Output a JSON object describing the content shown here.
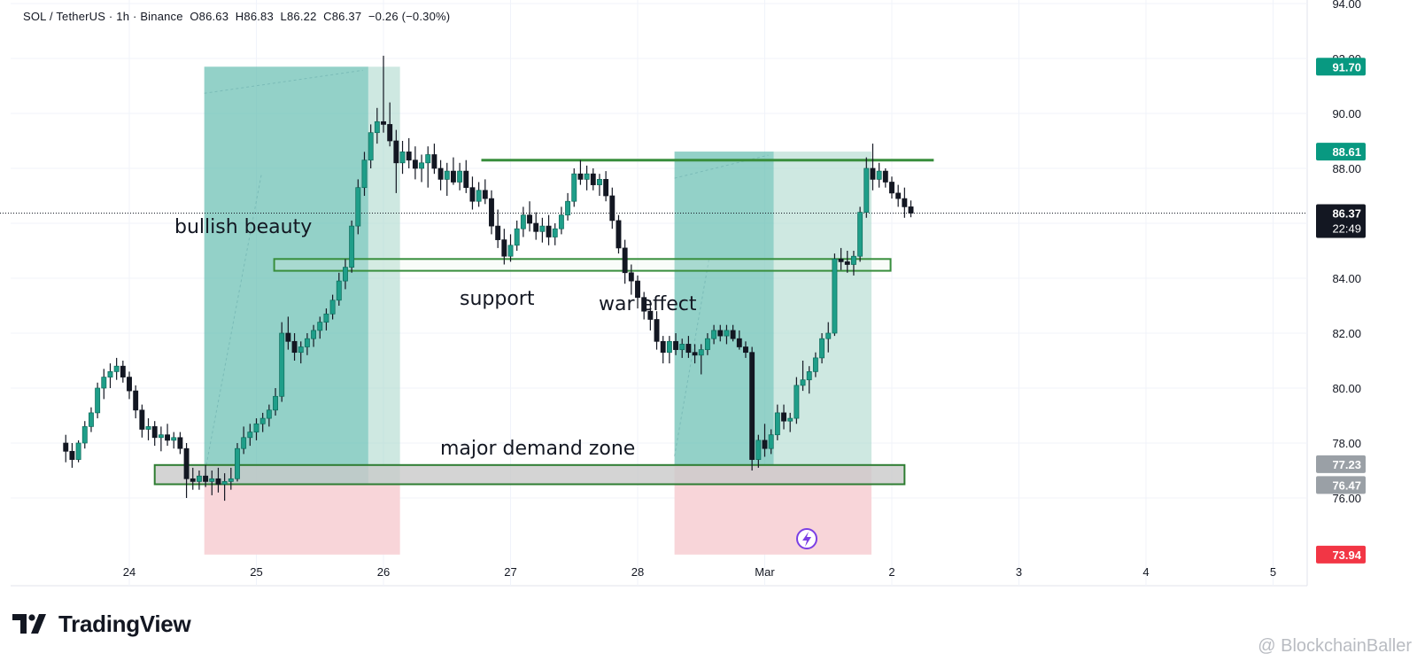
{
  "header": {
    "symbol": "SOL / TetherUS",
    "interval": "1h",
    "exchange": "Binance",
    "open": "O86.63",
    "high": "H86.83",
    "low": "L86.22",
    "close": "C86.37",
    "change": "−0.26 (−0.30%)"
  },
  "branding": {
    "logo_text": "TradingView",
    "watermark": "@ BlockchainBaller"
  },
  "colors": {
    "up": "#26a69a",
    "down": "#000000",
    "candle_body_up": "#ffffff",
    "long_profit": "#a5d6c9",
    "long_stop": "#f8d3d7",
    "zone_green": "#2e7d32",
    "demand_zone_fill": "#c9c9c9",
    "badge_green": "#089981",
    "badge_red": "#f23645",
    "badge_black": "#131722"
  },
  "chart_data": {
    "type": "candlestick",
    "symbol": "SOL/USDT",
    "timeframe": "1h",
    "ylim": [
      74,
      94
    ],
    "y_ticks": [
      "76.00",
      "78.00",
      "80.00",
      "82.00",
      "84.00",
      "86.00",
      "88.00",
      "90.00",
      "92.00",
      "94.00"
    ],
    "x_ticks": [
      "24",
      "25",
      "26",
      "27",
      "28",
      "Mar",
      "2",
      "3",
      "4",
      "5"
    ],
    "price_labels": [
      {
        "text": "91.70",
        "value": 91.7,
        "style": "green"
      },
      {
        "text": "88.61",
        "value": 88.61,
        "style": "green"
      },
      {
        "text": "86.37",
        "value": 86.37,
        "style": "black",
        "countdown": "22:49"
      },
      {
        "text": "77.23",
        "value": 77.23,
        "style": "gray"
      },
      {
        "text": "76.47",
        "value": 76.47,
        "style": "gray"
      },
      {
        "text": "73.94",
        "value": 73.94,
        "style": "red"
      }
    ],
    "annotations": [
      "bullish beauty",
      "support",
      "war effect",
      "major demand zone"
    ],
    "horizontal_levels": [
      {
        "name": "resistance",
        "value": 88.3,
        "from": 26.77,
        "to": 30.33
      },
      {
        "name": "support",
        "from": 25.14,
        "to": 29.99,
        "low": 84.4,
        "high": 84.7
      },
      {
        "name": "major demand zone",
        "from": 24.2,
        "to": 30.1,
        "low": 76.5,
        "high": 77.2
      }
    ],
    "positions": [
      {
        "type": "long",
        "start": 24.59,
        "mid": 25.88,
        "end": 26.13,
        "entry": 76.5,
        "target": 91.7,
        "stop": 73.94
      },
      {
        "type": "long",
        "start": 28.29,
        "mid": 29.07,
        "end": 29.84,
        "entry": 77.2,
        "target": 88.61,
        "stop": 73.94
      }
    ],
    "last_price": 86.37,
    "candles": [
      [
        23.5,
        78.0,
        78.3,
        77.3,
        77.7
      ],
      [
        23.55,
        77.7,
        78.0,
        77.1,
        77.4
      ],
      [
        23.6,
        77.4,
        78.1,
        77.3,
        78.0
      ],
      [
        23.65,
        78.0,
        78.8,
        77.8,
        78.6
      ],
      [
        23.7,
        78.6,
        79.3,
        78.4,
        79.1
      ],
      [
        23.75,
        79.1,
        80.2,
        78.9,
        80.0
      ],
      [
        23.8,
        80.0,
        80.7,
        79.6,
        80.4
      ],
      [
        23.85,
        80.4,
        80.9,
        80.0,
        80.6
      ],
      [
        23.9,
        80.6,
        81.1,
        80.3,
        80.8
      ],
      [
        23.95,
        80.8,
        81.0,
        80.2,
        80.4
      ],
      [
        24.0,
        80.4,
        80.6,
        79.6,
        79.9
      ],
      [
        24.05,
        79.9,
        80.1,
        78.9,
        79.2
      ],
      [
        24.1,
        79.2,
        79.4,
        78.2,
        78.5
      ],
      [
        24.15,
        78.5,
        78.9,
        78.1,
        78.6
      ],
      [
        24.2,
        78.6,
        78.8,
        77.9,
        78.2
      ],
      [
        24.25,
        78.2,
        78.6,
        77.7,
        78.3
      ],
      [
        24.3,
        78.3,
        78.7,
        77.9,
        78.1
      ],
      [
        24.35,
        78.1,
        78.4,
        77.8,
        78.2
      ],
      [
        24.4,
        78.2,
        78.4,
        77.6,
        77.8
      ],
      [
        24.45,
        77.8,
        78.0,
        76.0,
        76.7
      ],
      [
        24.5,
        76.7,
        77.1,
        76.3,
        76.6
      ],
      [
        24.55,
        76.6,
        77.0,
        76.3,
        76.8
      ],
      [
        24.6,
        76.8,
        77.2,
        76.4,
        76.6
      ],
      [
        24.65,
        76.6,
        77.0,
        76.1,
        76.7
      ],
      [
        24.7,
        76.7,
        77.1,
        76.2,
        76.5
      ],
      [
        24.75,
        76.5,
        76.9,
        75.9,
        76.6
      ],
      [
        24.8,
        76.6,
        77.1,
        76.3,
        76.7
      ],
      [
        24.85,
        76.7,
        78.0,
        76.6,
        77.8
      ],
      [
        24.9,
        77.8,
        78.6,
        77.6,
        78.2
      ],
      [
        24.95,
        78.2,
        78.7,
        77.9,
        78.4
      ],
      [
        25.0,
        78.4,
        78.9,
        78.1,
        78.7
      ],
      [
        25.05,
        78.7,
        79.1,
        78.4,
        78.9
      ],
      [
        25.1,
        78.9,
        79.4,
        78.6,
        79.2
      ],
      [
        25.15,
        79.2,
        80.0,
        79.0,
        79.7
      ],
      [
        25.2,
        79.7,
        82.4,
        79.5,
        82.0
      ],
      [
        25.25,
        82.0,
        82.6,
        81.4,
        81.7
      ],
      [
        25.3,
        81.7,
        82.0,
        81.0,
        81.3
      ],
      [
        25.35,
        81.3,
        81.7,
        80.9,
        81.5
      ],
      [
        25.4,
        81.5,
        82.0,
        81.2,
        81.8
      ],
      [
        25.45,
        81.8,
        82.3,
        81.5,
        82.1
      ],
      [
        25.5,
        82.1,
        82.6,
        81.8,
        82.4
      ],
      [
        25.55,
        82.4,
        82.9,
        82.1,
        82.7
      ],
      [
        25.6,
        82.7,
        83.4,
        82.5,
        83.2
      ],
      [
        25.65,
        83.2,
        84.2,
        83.0,
        83.9
      ],
      [
        25.7,
        83.9,
        84.7,
        83.6,
        84.4
      ],
      [
        25.75,
        84.4,
        86.1,
        84.2,
        85.9
      ],
      [
        25.8,
        85.9,
        87.6,
        85.6,
        87.3
      ],
      [
        25.85,
        87.3,
        88.6,
        87.0,
        88.3
      ],
      [
        25.9,
        88.3,
        89.6,
        88.0,
        89.3
      ],
      [
        25.95,
        89.3,
        90.2,
        88.9,
        89.7
      ],
      [
        26.0,
        89.7,
        92.1,
        89.3,
        89.6
      ],
      [
        26.05,
        89.6,
        90.4,
        88.8,
        89.0
      ],
      [
        26.1,
        89.0,
        89.4,
        87.1,
        88.2
      ],
      [
        26.15,
        88.2,
        89.0,
        87.8,
        88.6
      ],
      [
        26.2,
        88.6,
        89.1,
        88.0,
        88.3
      ],
      [
        26.25,
        88.3,
        88.8,
        87.6,
        88.0
      ],
      [
        26.3,
        88.0,
        88.5,
        87.5,
        88.2
      ],
      [
        26.35,
        88.2,
        88.8,
        87.3,
        88.5
      ],
      [
        26.4,
        88.5,
        88.9,
        87.8,
        88.0
      ],
      [
        26.45,
        88.0,
        88.3,
        87.2,
        87.6
      ],
      [
        26.5,
        87.6,
        88.2,
        87.0,
        87.9
      ],
      [
        26.55,
        87.9,
        88.4,
        87.4,
        87.5
      ],
      [
        26.6,
        87.5,
        88.2,
        87.2,
        87.9
      ],
      [
        26.65,
        87.9,
        88.3,
        87.1,
        87.3
      ],
      [
        26.7,
        87.3,
        87.7,
        86.5,
        86.8
      ],
      [
        26.75,
        86.8,
        87.5,
        86.6,
        87.2
      ],
      [
        26.8,
        87.2,
        87.6,
        86.7,
        86.9
      ],
      [
        26.85,
        86.9,
        87.2,
        85.6,
        85.9
      ],
      [
        26.9,
        85.9,
        86.5,
        85.1,
        85.4
      ],
      [
        26.95,
        85.4,
        85.8,
        84.5,
        84.8
      ],
      [
        27.0,
        84.8,
        85.6,
        84.6,
        85.2
      ],
      [
        27.05,
        85.2,
        86.1,
        85.0,
        85.8
      ],
      [
        27.1,
        85.8,
        86.6,
        85.5,
        86.3
      ],
      [
        27.15,
        86.3,
        86.8,
        85.7,
        86.0
      ],
      [
        27.2,
        86.0,
        86.4,
        85.4,
        85.7
      ],
      [
        27.25,
        85.7,
        86.2,
        85.3,
        85.9
      ],
      [
        27.3,
        85.9,
        86.3,
        85.2,
        85.5
      ],
      [
        27.35,
        85.5,
        86.0,
        85.2,
        85.8
      ],
      [
        27.4,
        85.8,
        86.6,
        85.6,
        86.3
      ],
      [
        27.45,
        86.3,
        87.1,
        86.1,
        86.8
      ],
      [
        27.5,
        86.8,
        88.0,
        86.6,
        87.8
      ],
      [
        27.55,
        87.8,
        88.3,
        87.4,
        87.6
      ],
      [
        27.6,
        87.6,
        88.1,
        87.2,
        87.8
      ],
      [
        27.65,
        87.8,
        88.0,
        87.2,
        87.4
      ],
      [
        27.7,
        87.4,
        87.8,
        87.0,
        87.6
      ],
      [
        27.75,
        87.6,
        87.9,
        86.8,
        87.0
      ],
      [
        27.8,
        87.0,
        87.3,
        85.8,
        86.1
      ],
      [
        27.85,
        86.1,
        86.3,
        84.9,
        85.1
      ],
      [
        27.9,
        85.1,
        85.4,
        83.8,
        84.2
      ],
      [
        27.95,
        84.2,
        84.5,
        83.4,
        83.9
      ],
      [
        28.0,
        83.9,
        84.1,
        82.9,
        83.3
      ],
      [
        28.05,
        83.3,
        83.5,
        82.5,
        82.8
      ],
      [
        28.1,
        82.8,
        83.2,
        82.1,
        82.5
      ],
      [
        28.15,
        82.5,
        82.8,
        81.4,
        81.7
      ],
      [
        28.2,
        81.7,
        81.9,
        80.9,
        81.3
      ],
      [
        28.25,
        81.3,
        81.9,
        80.9,
        81.7
      ],
      [
        28.3,
        81.7,
        82.0,
        81.2,
        81.4
      ],
      [
        28.35,
        81.4,
        81.8,
        81.1,
        81.6
      ],
      [
        28.4,
        81.6,
        81.9,
        81.1,
        81.3
      ],
      [
        28.45,
        81.3,
        81.6,
        80.9,
        81.2
      ],
      [
        28.5,
        81.2,
        81.6,
        80.5,
        81.4
      ],
      [
        28.55,
        81.4,
        82.0,
        81.2,
        81.8
      ],
      [
        28.6,
        81.8,
        82.3,
        81.6,
        82.1
      ],
      [
        28.65,
        82.1,
        82.3,
        81.7,
        81.9
      ],
      [
        28.7,
        81.9,
        82.3,
        81.6,
        82.1
      ],
      [
        28.75,
        82.1,
        82.3,
        81.7,
        81.8
      ],
      [
        28.8,
        81.8,
        82.1,
        81.4,
        81.5
      ],
      [
        28.85,
        81.5,
        81.7,
        81.1,
        81.3
      ],
      [
        28.9,
        81.3,
        81.5,
        77.0,
        77.4
      ],
      [
        28.95,
        77.4,
        78.3,
        77.1,
        78.1
      ],
      [
        29.0,
        78.1,
        78.7,
        77.5,
        77.8
      ],
      [
        29.05,
        77.8,
        78.5,
        77.6,
        78.3
      ],
      [
        29.1,
        78.3,
        79.4,
        78.1,
        79.1
      ],
      [
        29.15,
        79.1,
        79.4,
        78.5,
        78.8
      ],
      [
        29.2,
        78.8,
        79.1,
        78.4,
        78.9
      ],
      [
        29.25,
        78.9,
        80.4,
        78.7,
        80.1
      ],
      [
        29.3,
        80.1,
        81.0,
        79.9,
        80.3
      ],
      [
        29.35,
        80.3,
        80.8,
        79.8,
        80.6
      ],
      [
        29.4,
        80.6,
        81.3,
        80.4,
        81.1
      ],
      [
        29.45,
        81.1,
        82.0,
        80.9,
        81.8
      ],
      [
        29.5,
        81.8,
        82.4,
        81.3,
        82.0
      ],
      [
        29.55,
        82.0,
        84.9,
        81.9,
        84.7
      ],
      [
        29.6,
        84.7,
        85.1,
        84.3,
        84.6
      ],
      [
        29.65,
        84.6,
        85.0,
        84.2,
        84.5
      ],
      [
        29.7,
        84.5,
        85.0,
        84.1,
        84.8
      ],
      [
        29.75,
        84.8,
        86.6,
        84.6,
        86.4
      ],
      [
        29.8,
        86.4,
        88.4,
        86.2,
        88.0
      ],
      [
        29.85,
        88.0,
        88.9,
        87.2,
        87.6
      ],
      [
        29.9,
        87.6,
        88.2,
        87.3,
        87.9
      ],
      [
        29.95,
        87.9,
        88.0,
        87.3,
        87.5
      ],
      [
        30.0,
        87.5,
        87.7,
        86.9,
        87.1
      ],
      [
        30.05,
        87.1,
        87.4,
        86.6,
        86.9
      ],
      [
        30.1,
        86.9,
        87.3,
        86.2,
        86.6
      ],
      [
        30.15,
        86.6,
        86.83,
        86.22,
        86.37
      ]
    ]
  }
}
